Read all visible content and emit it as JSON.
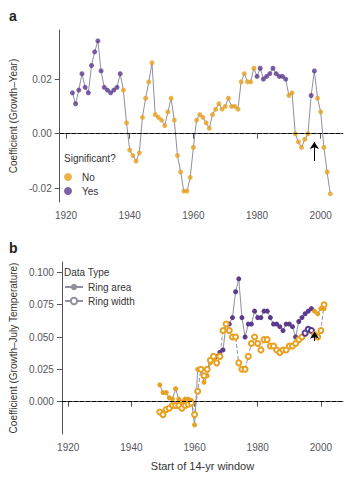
{
  "chart_data": [
    {
      "type": "line",
      "title": "a",
      "ylabel": "Coefficient (Growth–Year)",
      "x": [
        1922,
        1923,
        1924,
        1925,
        1926,
        1927,
        1928,
        1929,
        1930,
        1931,
        1932,
        1933,
        1934,
        1935,
        1936,
        1937,
        1938,
        1939,
        1940,
        1941,
        1942,
        1943,
        1944,
        1945,
        1946,
        1947,
        1948,
        1949,
        1950,
        1951,
        1952,
        1953,
        1954,
        1955,
        1956,
        1957,
        1958,
        1959,
        1960,
        1961,
        1962,
        1963,
        1964,
        1965,
        1966,
        1967,
        1968,
        1969,
        1970,
        1971,
        1972,
        1973,
        1974,
        1975,
        1976,
        1977,
        1978,
        1979,
        1980,
        1981,
        1982,
        1983,
        1984,
        1985,
        1986,
        1987,
        1988,
        1989,
        1990,
        1991,
        1992,
        1993,
        1994,
        1995,
        1996,
        1997,
        1998,
        1999,
        2000,
        2001,
        2002,
        2003
      ],
      "series": [
        {
          "type": "line",
          "color": "#9090A0",
          "line_style": "solid",
          "values": [
            0.015,
            0.011,
            0.016,
            0.022,
            0.017,
            0.015,
            0.025,
            0.03,
            0.034,
            0.023,
            0.017,
            0.016,
            0.015,
            0.016,
            0.017,
            0.022,
            0.016,
            0.004,
            -0.006,
            -0.008,
            -0.01,
            -0.007,
            0.006,
            0.013,
            0.019,
            0.026,
            0.007,
            0.006,
            0.005,
            0.003,
            0.008,
            0.013,
            0.005,
            -0.008,
            -0.014,
            -0.021,
            -0.021,
            -0.016,
            -0.005,
            0.005,
            0.007,
            0.006,
            0.004,
            0.002,
            0.007,
            0.009,
            0.011,
            0.009,
            0.01,
            0.013,
            0.01,
            0.01,
            0.009,
            0.019,
            0.022,
            0.019,
            0.019,
            0.024,
            0.021,
            0.024,
            0.02,
            0.021,
            0.022,
            0.024,
            0.022,
            0.021,
            0.021,
            0.02,
            0.014,
            0.015,
            0.0,
            -0.003,
            -0.005,
            -0.002,
            0.0,
            0.014,
            0.023,
            0.013,
            0.008,
            -0.005,
            -0.014,
            -0.022
          ]
        },
        {
          "name": "No",
          "type": "scatter",
          "color": "#E8A020",
          "marker": "circle",
          "values": [
            null,
            null,
            null,
            null,
            null,
            null,
            null,
            null,
            null,
            null,
            null,
            null,
            null,
            null,
            null,
            null,
            0.016,
            0.004,
            -0.006,
            -0.008,
            -0.01,
            -0.007,
            0.006,
            0.013,
            0.019,
            0.026,
            0.007,
            0.006,
            0.005,
            0.003,
            0.008,
            0.013,
            0.005,
            -0.008,
            -0.014,
            -0.021,
            -0.021,
            -0.016,
            -0.005,
            0.005,
            0.007,
            0.006,
            0.004,
            0.002,
            0.007,
            0.009,
            0.011,
            0.009,
            0.01,
            0.013,
            0.01,
            0.01,
            0.009,
            0.019,
            0.022,
            0.019,
            0.019,
            0.024,
            null,
            null,
            null,
            null,
            null,
            null,
            null,
            null,
            null,
            null,
            0.014,
            0.015,
            0.0,
            -0.003,
            -0.005,
            -0.002,
            0.0,
            null,
            null,
            0.013,
            0.008,
            -0.005,
            -0.014,
            -0.022
          ]
        },
        {
          "name": "Yes",
          "type": "scatter",
          "color": "#5B3A8E",
          "marker": "circle",
          "values": [
            0.015,
            0.011,
            0.016,
            0.022,
            0.017,
            0.015,
            0.025,
            0.03,
            0.034,
            0.023,
            0.017,
            0.016,
            0.015,
            0.016,
            0.017,
            0.022,
            null,
            null,
            null,
            null,
            null,
            null,
            null,
            null,
            null,
            null,
            null,
            null,
            null,
            null,
            null,
            null,
            null,
            null,
            null,
            null,
            null,
            null,
            null,
            null,
            null,
            null,
            null,
            null,
            null,
            null,
            null,
            null,
            null,
            null,
            null,
            null,
            null,
            null,
            null,
            null,
            null,
            null,
            0.021,
            0.024,
            0.02,
            0.021,
            0.022,
            0.024,
            0.022,
            0.021,
            0.021,
            0.02,
            null,
            null,
            null,
            null,
            null,
            null,
            null,
            0.014,
            0.023,
            null,
            null,
            null,
            null,
            null
          ]
        }
      ],
      "legend": "lower left",
      "legend_title": "Significant?",
      "hline": {
        "y": 0,
        "color": "#000000",
        "line_style": "dashed"
      },
      "arrow": {
        "x": 1998,
        "y_from": -0.01,
        "y_to": -0.003,
        "color": "#000000"
      },
      "xlim": [
        1918,
        2007
      ],
      "xticks": [
        1920,
        1940,
        1960,
        1980,
        2000
      ],
      "ylim": [
        -0.025,
        0.038
      ],
      "yticks": [
        -0.02,
        {
          "value": 0,
          "label": "0.00"
        },
        0.02
      ],
      "grid": false
    },
    {
      "type": "line",
      "title": "b",
      "ylabel": "Coefficient (Growth–July Temperature)",
      "xlabel": "Start of 14-yr window",
      "x": [
        1949,
        1950,
        1951,
        1952,
        1953,
        1954,
        1955,
        1956,
        1957,
        1958,
        1959,
        1960,
        1961,
        1962,
        1963,
        1964,
        1965,
        1966,
        1967,
        1968,
        1969,
        1970,
        1971,
        1972,
        1973,
        1974,
        1975,
        1976,
        1977,
        1978,
        1979,
        1980,
        1981,
        1982,
        1983,
        1984,
        1985,
        1986,
        1987,
        1988,
        1989,
        1990,
        1991,
        1992,
        1993,
        1994,
        1995,
        1996,
        1997,
        1998,
        1999,
        2000,
        2001
      ],
      "series": [
        {
          "name": "Ring area",
          "type": "line",
          "color": "#9090A0",
          "line_style": "solid",
          "marker": "circle",
          "values": [
            0.013,
            0.007,
            0.007,
            0.003,
            0.002,
            0.01,
            0.002,
            0.0,
            0.002,
            0.002,
            0.001,
            -0.018,
            0.025,
            0.025,
            0.015,
            0.02,
            0.03,
            0.033,
            0.035,
            0.038,
            0.04,
            0.06,
            0.06,
            0.065,
            0.085,
            0.095,
            0.065,
            0.05,
            0.06,
            0.06,
            0.07,
            0.065,
            0.065,
            0.07,
            0.07,
            0.065,
            0.06,
            0.06,
            0.058,
            0.055,
            0.06,
            0.06,
            0.058,
            0.05,
            0.062,
            0.065,
            0.068,
            0.07,
            0.072,
            0.07,
            0.068,
            0.072,
            0.072
          ],
          "colors": [
            "#E8A020",
            "#E8A020",
            "#E8A020",
            "#E8A020",
            "#E8A020",
            "#E8A020",
            "#E8A020",
            "#E8A020",
            "#E8A020",
            "#E8A020",
            "#E8A020",
            "#E8A020",
            "#E8A020",
            "#E8A020",
            "#E8A020",
            "#E8A020",
            "#E8A020",
            "#E8A020",
            "#5B3A8E",
            "#5B3A8E",
            "#5B3A8E",
            "#5B3A8E",
            "#5B3A8E",
            "#5B3A8E",
            "#5B3A8E",
            "#5B3A8E",
            "#5B3A8E",
            "#5B3A8E",
            "#5B3A8E",
            "#5B3A8E",
            "#5B3A8E",
            "#5B3A8E",
            "#5B3A8E",
            "#5B3A8E",
            "#5B3A8E",
            "#5B3A8E",
            "#5B3A8E",
            "#5B3A8E",
            "#5B3A8E",
            "#5B3A8E",
            "#5B3A8E",
            "#5B3A8E",
            "#5B3A8E",
            "#5B3A8E",
            "#5B3A8E",
            "#5B3A8E",
            "#5B3A8E",
            "#5B3A8E",
            "#5B3A8E",
            "#E8A020",
            "#E8A020",
            "#E8A020",
            "#E8A020"
          ]
        },
        {
          "name": "Ring width",
          "type": "line",
          "color": "#9090A0",
          "line_style": "dashed",
          "marker": "emptyCircle",
          "values": [
            -0.008,
            -0.01,
            -0.006,
            -0.005,
            -0.003,
            -0.003,
            -0.003,
            -0.005,
            -0.003,
            -0.002,
            -0.001,
            -0.01,
            0.008,
            0.025,
            0.02,
            0.025,
            0.032,
            0.035,
            0.03,
            0.035,
            0.055,
            0.06,
            0.055,
            0.05,
            0.05,
            0.03,
            0.025,
            0.025,
            0.035,
            0.045,
            0.05,
            0.045,
            0.04,
            0.048,
            0.048,
            0.043,
            0.043,
            0.04,
            0.038,
            0.04,
            0.04,
            0.043,
            0.043,
            0.045,
            0.048,
            0.05,
            0.053,
            0.056,
            0.055,
            0.052,
            0.05,
            0.055,
            0.075
          ],
          "colors": [
            "#E8A020",
            "#E8A020",
            "#E8A020",
            "#E8A020",
            "#E8A020",
            "#E8A020",
            "#E8A020",
            "#E8A020",
            "#E8A020",
            "#E8A020",
            "#E8A020",
            "#E8A020",
            "#E8A020",
            "#E8A020",
            "#E8A020",
            "#E8A020",
            "#E8A020",
            "#E8A020",
            "#E8A020",
            "#E8A020",
            "#E8A020",
            "#E8A020",
            "#E8A020",
            "#E8A020",
            "#E8A020",
            "#E8A020",
            "#E8A020",
            "#E8A020",
            "#E8A020",
            "#E8A020",
            "#E8A020",
            "#E8A020",
            "#E8A020",
            "#E8A020",
            "#E8A020",
            "#E8A020",
            "#E8A020",
            "#E8A020",
            "#E8A020",
            "#E8A020",
            "#E8A020",
            "#E8A020",
            "#E8A020",
            "#E8A020",
            "#E8A020",
            "#E8A020",
            "#5B3A8E",
            "#5B3A8E",
            "#5B3A8E",
            "#E8A020",
            "#E8A020",
            "#E8A020",
            "#E8A020"
          ]
        }
      ],
      "legend": "upper left",
      "legend_title": "Data Type",
      "hline": {
        "y": 0,
        "color": "#000000",
        "line_style": "dashed"
      },
      "arrow": {
        "x": 1998,
        "y_from": 0.047,
        "y_to": 0.054,
        "color": "#000000"
      },
      "xlim": [
        1918,
        2007
      ],
      "xticks": [
        1920,
        1940,
        1960,
        1980,
        2000
      ],
      "ylim": [
        -0.025,
        0.108
      ],
      "yticks": [
        {
          "value": 0,
          "label": "0.000"
        },
        0.025,
        {
          "value": 0.05,
          "label": "0.050"
        },
        0.075,
        {
          "value": 0.1,
          "label": "0.100"
        }
      ],
      "grid": false
    }
  ]
}
